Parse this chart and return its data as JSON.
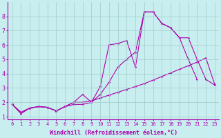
{
  "title": "",
  "xlabel": "Windchill (Refroidissement éolien,°C)",
  "ylabel": "",
  "xlim": [
    -0.5,
    23.5
  ],
  "ylim": [
    0.8,
    9.0
  ],
  "bg_color": "#c8eef0",
  "grid_color": "#a0ccc8",
  "line_color": "#aa00aa",
  "xticks": [
    0,
    1,
    2,
    3,
    4,
    5,
    6,
    7,
    8,
    9,
    10,
    11,
    12,
    13,
    14,
    15,
    16,
    17,
    18,
    19,
    20,
    21,
    22,
    23
  ],
  "yticks": [
    1,
    2,
    3,
    4,
    5,
    6,
    7,
    8
  ],
  "line1_x": [
    0,
    1,
    2,
    3,
    4,
    5,
    6,
    7,
    8,
    9,
    10,
    11,
    12,
    13,
    14,
    15,
    16,
    17,
    18,
    19,
    20,
    21,
    22,
    23
  ],
  "line1_y": [
    1.85,
    1.3,
    1.6,
    1.7,
    1.65,
    1.4,
    1.7,
    2.0,
    2.0,
    2.1,
    2.3,
    2.5,
    2.7,
    2.9,
    3.1,
    3.3,
    3.55,
    3.8,
    4.05,
    4.3,
    4.55,
    4.8,
    5.1,
    3.25
  ],
  "line2_x": [
    0,
    1,
    2,
    3,
    4,
    5,
    6,
    7,
    8,
    9,
    10,
    11,
    12,
    13,
    14,
    15,
    16,
    17,
    18,
    19,
    20,
    21,
    22,
    23
  ],
  "line2_y": [
    1.85,
    1.3,
    1.6,
    1.7,
    1.65,
    1.4,
    1.7,
    2.0,
    2.55,
    2.0,
    3.1,
    6.0,
    6.1,
    6.3,
    4.45,
    8.3,
    8.3,
    7.5,
    7.2,
    6.5,
    6.5,
    5.0,
    3.6,
    3.2
  ],
  "line3_x": [
    0,
    1,
    2,
    3,
    4,
    5,
    6,
    7,
    8,
    9,
    10,
    11,
    12,
    13,
    14,
    15,
    16,
    17,
    18,
    19,
    20,
    21,
    22,
    23
  ],
  "line3_y": [
    1.85,
    1.2,
    1.6,
    1.7,
    1.65,
    1.4,
    1.7,
    1.85,
    1.85,
    2.0,
    2.55,
    3.4,
    4.45,
    5.0,
    5.5,
    8.3,
    8.3,
    7.5,
    7.2,
    6.5,
    5.0,
    3.6,
    null,
    null
  ]
}
